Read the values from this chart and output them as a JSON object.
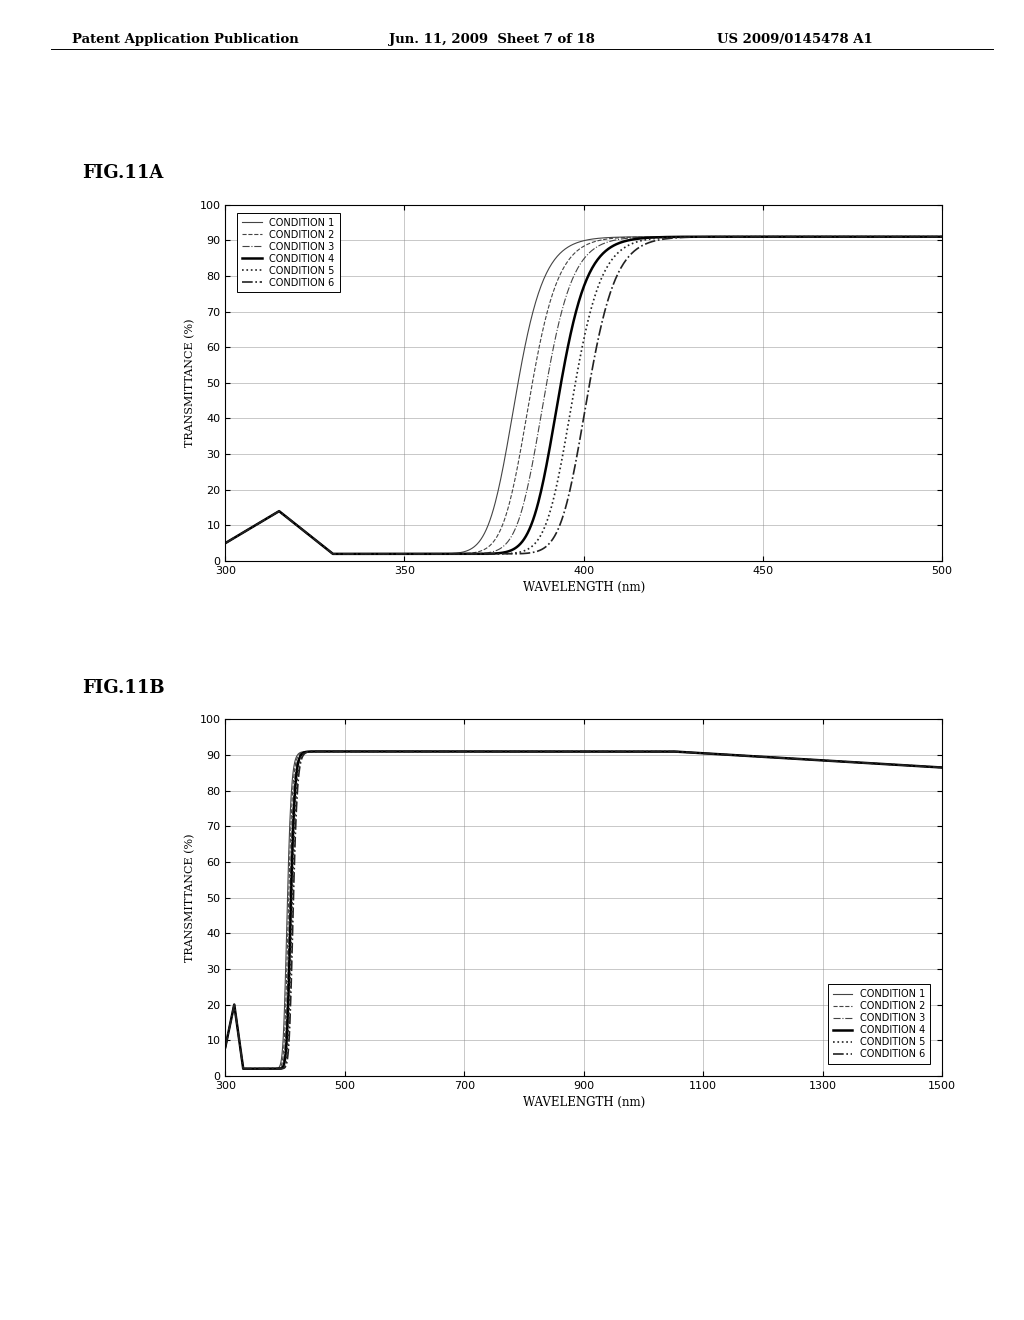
{
  "header_left": "Patent Application Publication",
  "header_mid": "Jun. 11, 2009  Sheet 7 of 18",
  "header_right": "US 2009/0145478 A1",
  "fig_a_label": "FIG.11A",
  "fig_b_label": "FIG.11B",
  "ylabel": "TRANSMITTANCE (%)",
  "xlabel_a": "WAVELENGTH (nm)",
  "xlabel_b": "WAVELENGTH (nm)",
  "xlim_a": [
    300,
    500
  ],
  "xlim_b": [
    300,
    1500
  ],
  "ylim": [
    0,
    100
  ],
  "xticks_a": [
    300,
    350,
    400,
    450,
    500
  ],
  "xticks_b": [
    300,
    500,
    700,
    900,
    1100,
    1300,
    1500
  ],
  "yticks": [
    0,
    10,
    20,
    30,
    40,
    50,
    60,
    70,
    80,
    90,
    100
  ],
  "conditions": [
    "CONDITION 1",
    "CONDITION 2",
    "CONDITION 3",
    "CONDITION 4",
    "CONDITION 5",
    "CONDITION 6"
  ],
  "line_styles": [
    "-",
    "--",
    "-.",
    "-",
    ":",
    "-."
  ],
  "line_widths": [
    0.8,
    0.8,
    0.8,
    1.8,
    1.2,
    1.2
  ],
  "line_colors": [
    "#444444",
    "#444444",
    "#444444",
    "#000000",
    "#222222",
    "#222222"
  ],
  "background_color": "#ffffff",
  "centers_a": [
    377,
    381,
    385,
    389,
    393,
    397
  ],
  "steepness_a": 0.22,
  "centers_b": [
    400,
    402,
    404,
    406,
    408,
    410
  ],
  "steepness_b": 0.25
}
